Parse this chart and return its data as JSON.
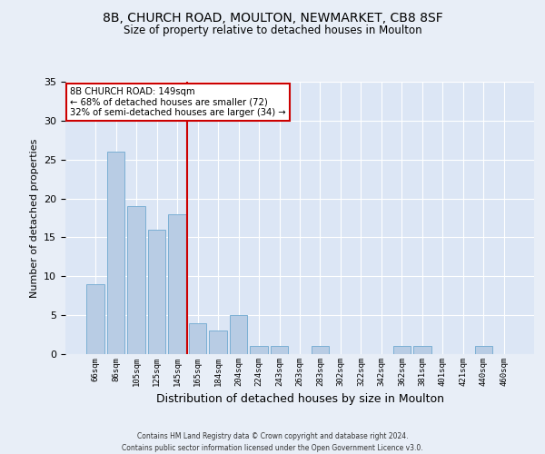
{
  "title_line1": "8B, CHURCH ROAD, MOULTON, NEWMARKET, CB8 8SF",
  "title_line2": "Size of property relative to detached houses in Moulton",
  "xlabel": "Distribution of detached houses by size in Moulton",
  "ylabel": "Number of detached properties",
  "categories": [
    "66sqm",
    "86sqm",
    "105sqm",
    "125sqm",
    "145sqm",
    "165sqm",
    "184sqm",
    "204sqm",
    "224sqm",
    "243sqm",
    "263sqm",
    "283sqm",
    "302sqm",
    "322sqm",
    "342sqm",
    "362sqm",
    "381sqm",
    "401sqm",
    "421sqm",
    "440sqm",
    "460sqm"
  ],
  "values": [
    9,
    26,
    19,
    16,
    18,
    4,
    3,
    5,
    1,
    1,
    0,
    1,
    0,
    0,
    0,
    1,
    1,
    0,
    0,
    1,
    0
  ],
  "bar_color": "#b8cce4",
  "bar_edge_color": "#7bafd4",
  "ref_line_x": 4.5,
  "ref_line_color": "#cc0000",
  "annotation_line1": "8B CHURCH ROAD: 149sqm",
  "annotation_line2": "← 68% of detached houses are smaller (72)",
  "annotation_line3": "32% of semi-detached houses are larger (34) →",
  "annotation_box_color": "#ffffff",
  "annotation_box_edge": "#cc0000",
  "ylim": [
    0,
    35
  ],
  "yticks": [
    0,
    5,
    10,
    15,
    20,
    25,
    30,
    35
  ],
  "footer1": "Contains HM Land Registry data © Crown copyright and database right 2024.",
  "footer2": "Contains public sector information licensed under the Open Government Licence v3.0.",
  "background_color": "#e8eef7",
  "plot_bg_color": "#dce6f5"
}
